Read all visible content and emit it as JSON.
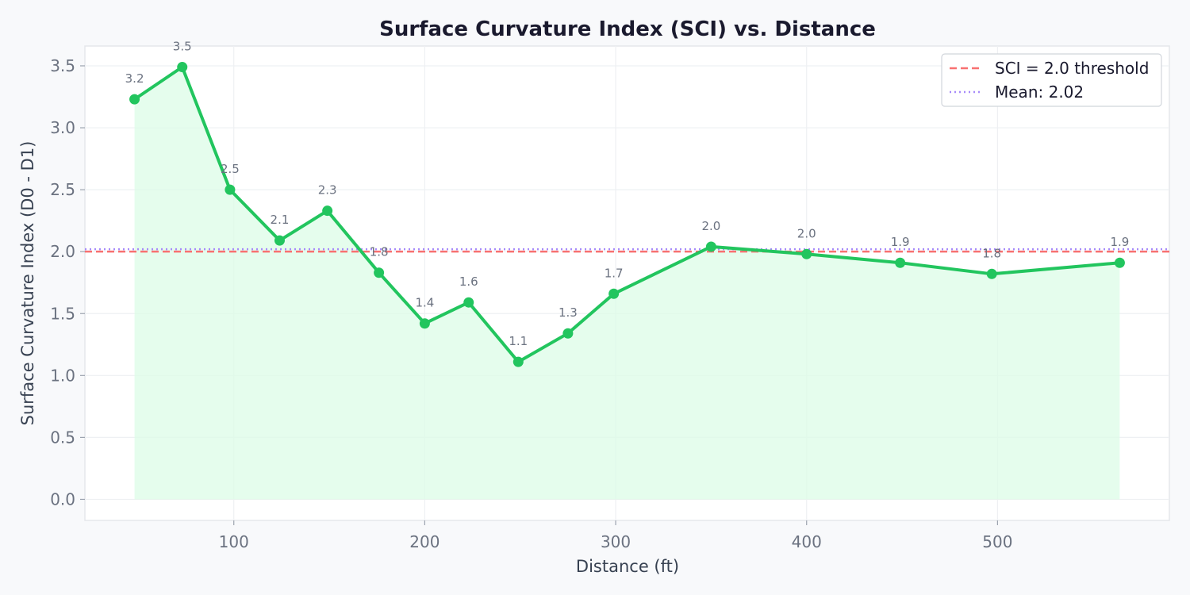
{
  "chart_data": {
    "type": "line",
    "title": "Surface Curvature Index (SCI) vs. Distance",
    "xlabel": "Distance (ft)",
    "ylabel": "Surface Curvature Index (D0 - D1)",
    "xlim": [
      22,
      590
    ],
    "ylim": [
      -0.17,
      3.66
    ],
    "xticks": [
      100,
      200,
      300,
      400,
      500
    ],
    "yticks": [
      0.0,
      0.5,
      1.0,
      1.5,
      2.0,
      2.5,
      3.0,
      3.5
    ],
    "grid": true,
    "legend_position": "top-right",
    "series": [
      {
        "name": "SCI",
        "color": "#22c55e",
        "fill_color": "#dcfce7",
        "x": [
          48,
          73,
          98,
          124,
          149,
          176,
          200,
          223,
          249,
          275,
          299,
          350,
          400,
          449,
          497,
          564
        ],
        "values": [
          3.23,
          3.49,
          2.5,
          2.09,
          2.33,
          1.83,
          1.42,
          1.59,
          1.11,
          1.34,
          1.66,
          2.04,
          1.98,
          1.91,
          1.82,
          1.91
        ],
        "labels": [
          "3.2",
          "3.5",
          "2.5",
          "2.1",
          "2.3",
          "1.8",
          "1.4",
          "1.6",
          "1.1",
          "1.3",
          "1.7",
          "2.0",
          "2.0",
          "1.9",
          "1.8",
          "1.9"
        ]
      }
    ],
    "reference_lines": [
      {
        "name": "SCI = 2.0 threshold",
        "value": 2.0,
        "color": "#f87171",
        "style": "dashed"
      },
      {
        "name": "Mean: 2.02",
        "value": 2.02,
        "color": "#a78bfa",
        "style": "dotted"
      }
    ]
  }
}
